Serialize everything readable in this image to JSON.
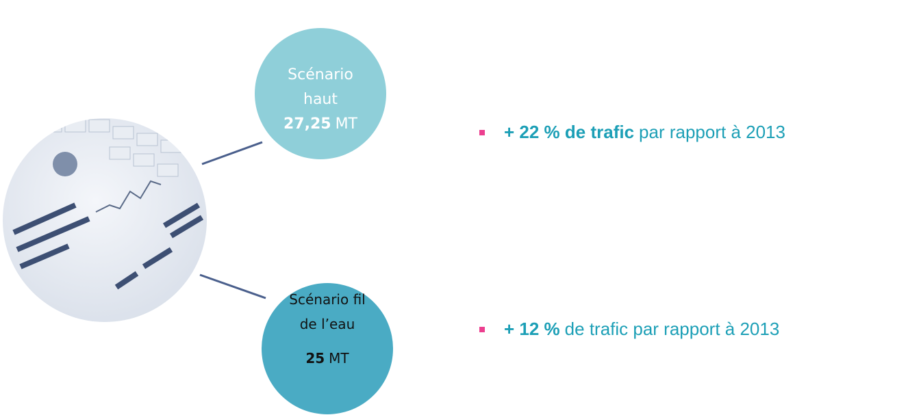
{
  "nodes": [
    {
      "label_lines": [
        "Scénario",
        "haut"
      ],
      "value": "27,25",
      "unit": "MT"
    },
    {
      "label_lines": [
        "Scénario fil",
        "de l’eau"
      ],
      "value": "25",
      "unit": "MT"
    }
  ],
  "bullets": [
    {
      "bold": "+ 22 % de trafic",
      "text": "par rapport à 2013"
    },
    {
      "bold": "+ 12 %",
      "text": "de trafic par rapport à 2013"
    }
  ]
}
